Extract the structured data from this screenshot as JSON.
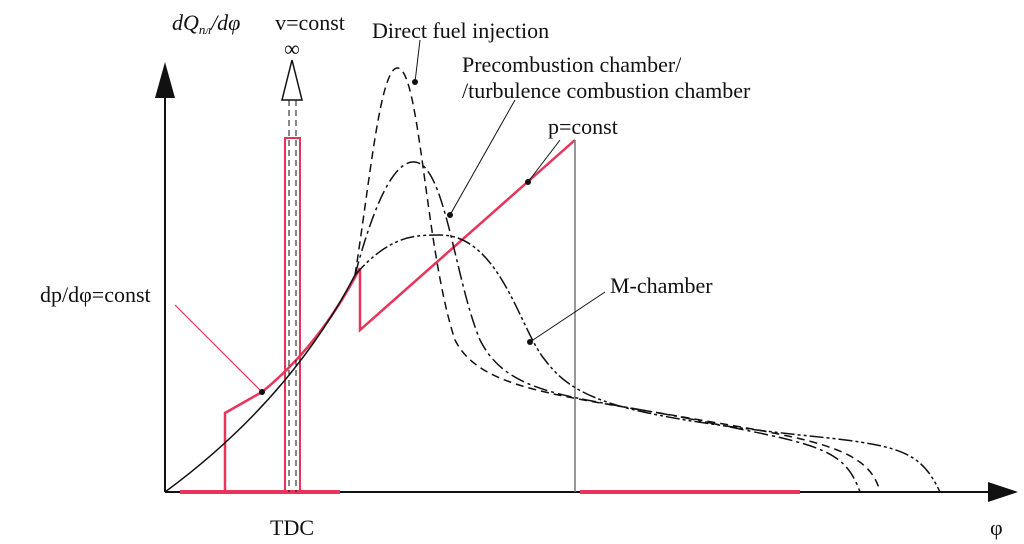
{
  "axes": {
    "y_label": {
      "main": "dQ",
      "subscript": "пл",
      "tail": "/dφ"
    },
    "x_label": "φ",
    "tdc": "TDC"
  },
  "annotations": {
    "v_const": "v=const",
    "infinity": "∞",
    "direct": "Direct fuel injection",
    "precombustion_1": "Precombustion chamber/",
    "precombustion_2": "/turbulence combustion chamber",
    "p_const": "p=const",
    "dp_const": "dp/dφ=const",
    "m_chamber": "M-chamber"
  }
}
